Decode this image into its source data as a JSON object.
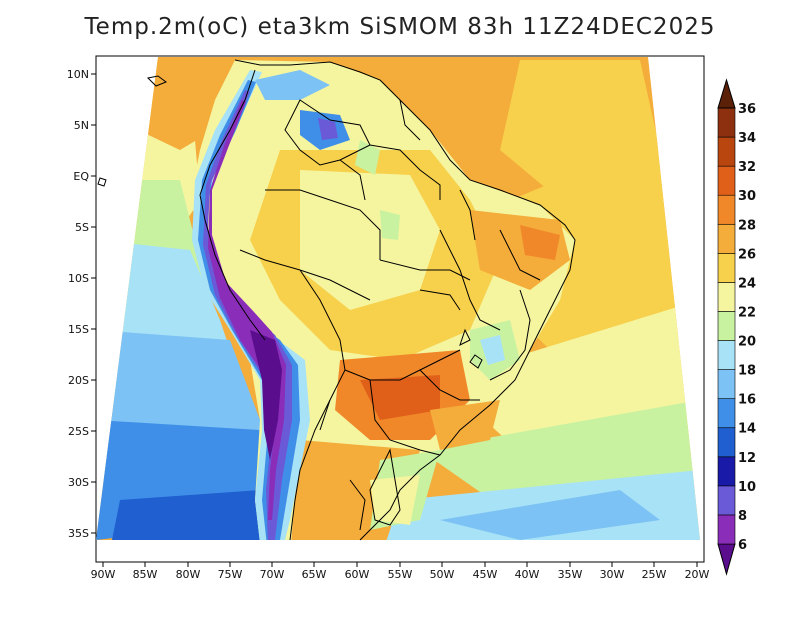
{
  "title": "Temp.2m(oC) eta3km SiSMOM 83h 11Z24DEC2025",
  "lat_labels": [
    "10N",
    "5N",
    "EQ",
    "5S",
    "10S",
    "15S",
    "20S",
    "25S",
    "30S",
    "35S"
  ],
  "lon_labels": [
    "90W",
    "85W",
    "80W",
    "75W",
    "70W",
    "65W",
    "60W",
    "55W",
    "50W",
    "45W",
    "40W",
    "35W",
    "30W",
    "25W",
    "20W"
  ],
  "colorbar": {
    "labels": [
      "6",
      "8",
      "10",
      "12",
      "14",
      "16",
      "18",
      "20",
      "22",
      "24",
      "26",
      "28",
      "30",
      "32",
      "34",
      "36"
    ],
    "colors": [
      "#5a0d8c",
      "#8a2db8",
      "#6a5ad8",
      "#1a1aa8",
      "#1f5fd0",
      "#3f8fe8",
      "#7cc2f4",
      "#a8e2f6",
      "#c8f2a0",
      "#f5f5a0",
      "#f7d04c",
      "#f4ac3a",
      "#f0882a",
      "#e0601a",
      "#b8460e",
      "#8c3010",
      "#5a2008"
    ]
  }
}
